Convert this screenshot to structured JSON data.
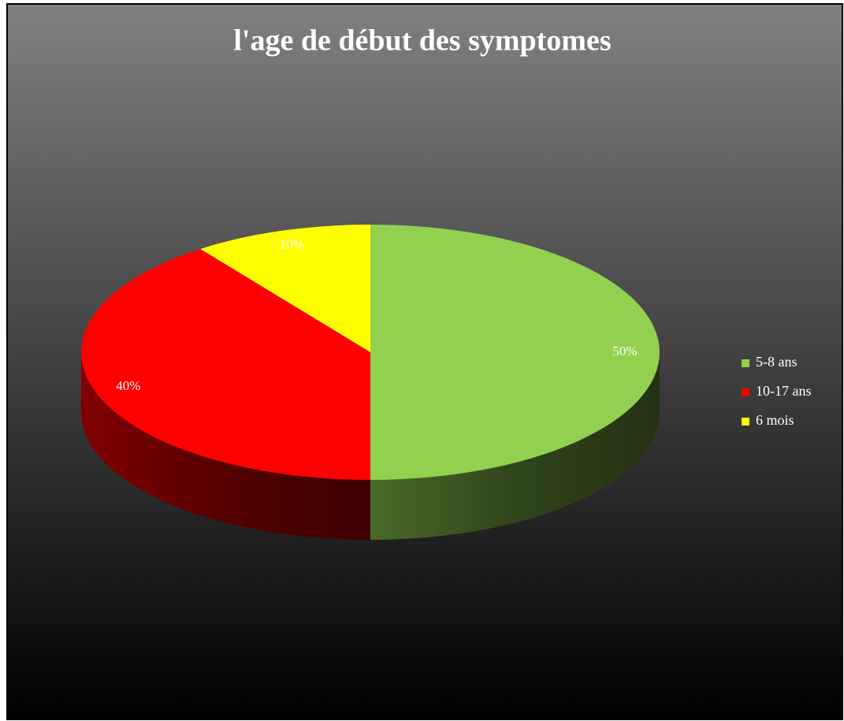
{
  "chart_data": {
    "type": "pie3d",
    "title": "l'age de début des symptomes",
    "categories": [
      "5-8 ans",
      "10-17 ans",
      "6 mois"
    ],
    "values": [
      50,
      40,
      10
    ],
    "value_labels": [
      "50%",
      "40%",
      "10%"
    ],
    "colors": [
      "#92d050",
      "#ff0000",
      "#ffff00"
    ],
    "legend": "right"
  }
}
